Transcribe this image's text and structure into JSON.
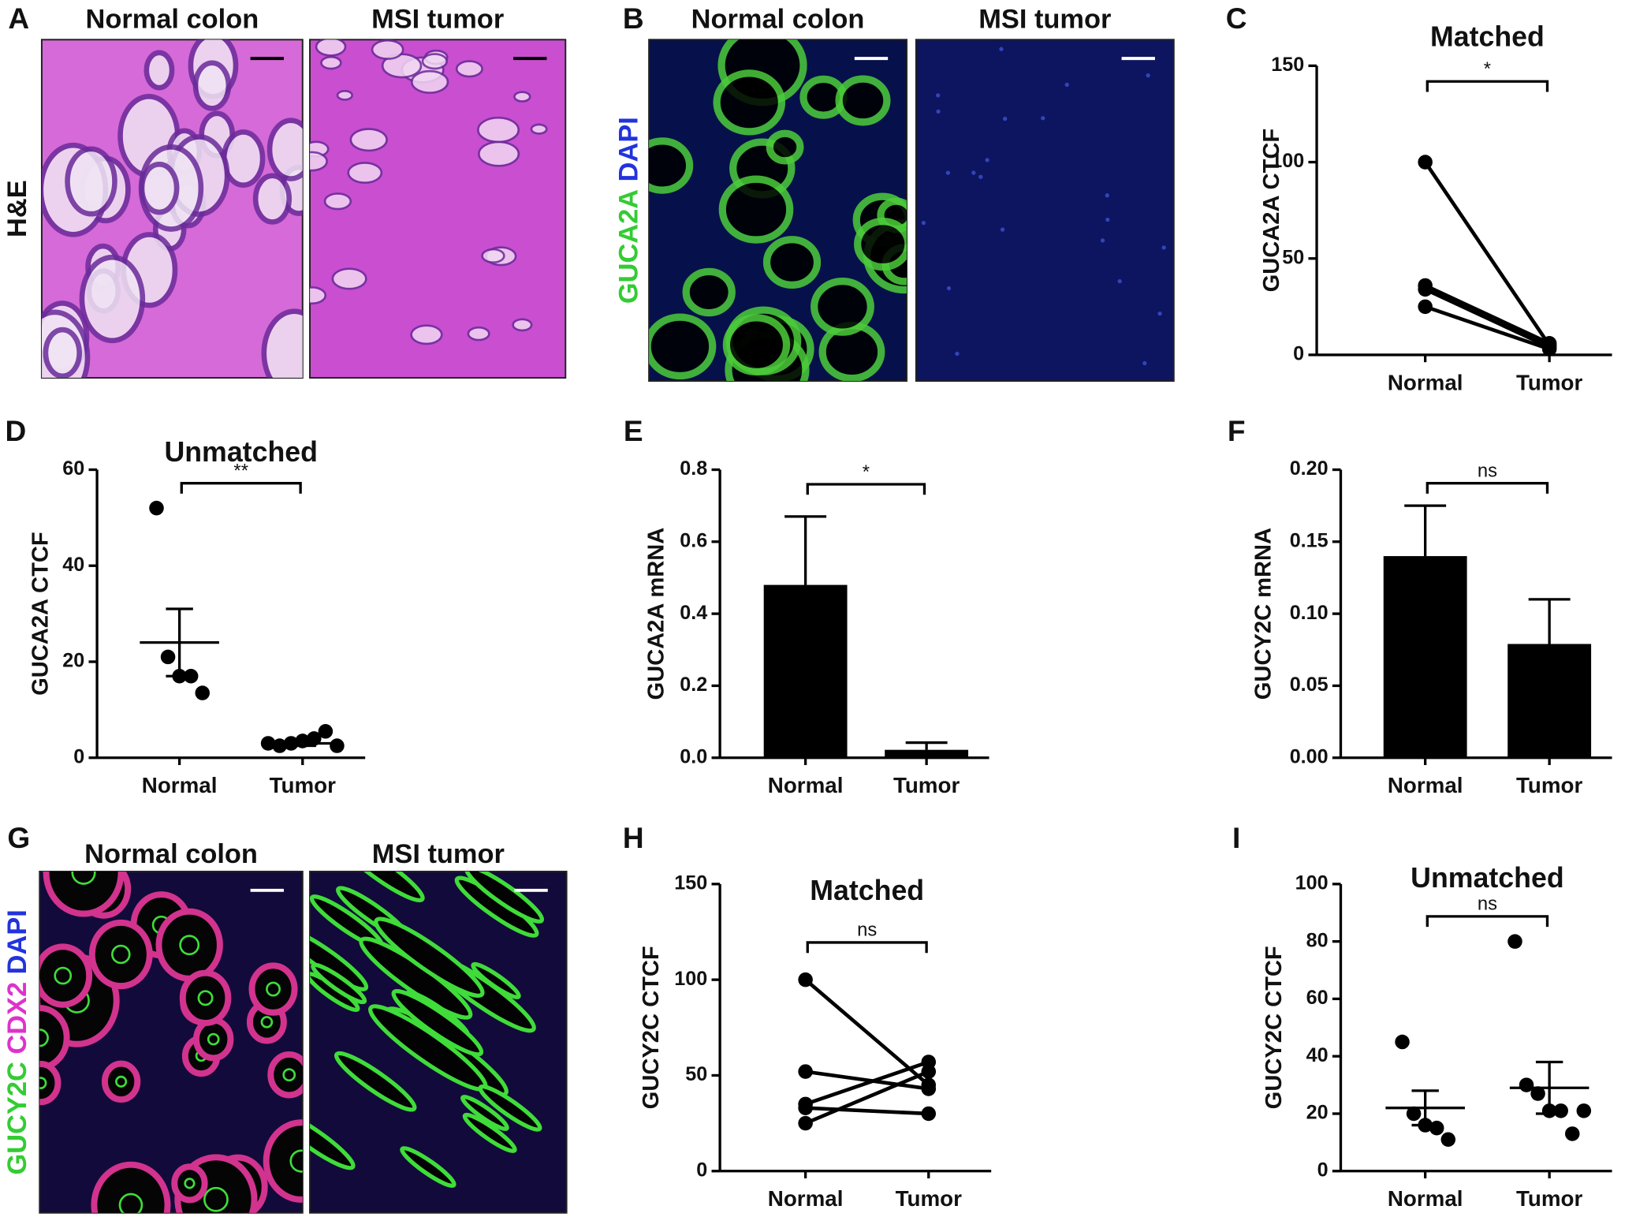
{
  "image_panels": [
    {
      "label": "A",
      "titles": [
        "Normal colon",
        "MSI tumor"
      ],
      "stains": [
        {
          "text": "H&E",
          "color": "#111111"
        }
      ]
    },
    {
      "label": "B",
      "titles": [
        "Normal colon",
        "MSI tumor"
      ],
      "stains": [
        {
          "text": "GUCA2A",
          "color": "#33cc33"
        },
        {
          "text": "DAPI",
          "color": "#2233dd"
        }
      ]
    },
    {
      "label": "G",
      "titles": [
        "Normal colon",
        "MSI tumor"
      ],
      "stains": [
        {
          "text": "GUCY2C",
          "color": "#33cc33"
        },
        {
          "text": "CDX2",
          "color": "#dd33cc"
        },
        {
          "text": "DAPI",
          "color": "#2233dd"
        }
      ]
    }
  ],
  "chart_data": [
    {
      "type": "line",
      "label": "C",
      "title": "Matched",
      "y_label": "GUCA2A CTCF",
      "categories": [
        "Normal",
        "Tumor"
      ],
      "series": [
        {
          "color": "#000000",
          "values": [
            100,
            5
          ]
        },
        {
          "color": "#000000",
          "values": [
            36,
            6
          ]
        },
        {
          "color": "#000000",
          "values": [
            34,
            4
          ]
        },
        {
          "color": "#000000",
          "values": [
            25,
            3
          ]
        }
      ],
      "ylim": [
        0,
        150
      ],
      "yticks": [
        0,
        50,
        100,
        150
      ],
      "significance": "*"
    },
    {
      "type": "dotplot",
      "label": "D",
      "title": "Unmatched",
      "y_label": "GUCA2A CTCF",
      "categories": [
        "Normal",
        "Tumor"
      ],
      "groups": [
        {
          "values": [
            52,
            21,
            17,
            17,
            13.5
          ],
          "mean": 24,
          "sem": 7
        },
        {
          "values": [
            3,
            2.5,
            3,
            3.5,
            4,
            5.5,
            2.5
          ],
          "mean": 3,
          "sem": 0.5
        }
      ],
      "color": "#000000",
      "ylim": [
        0,
        60
      ],
      "yticks": [
        0,
        20,
        40,
        60
      ],
      "significance": "**"
    },
    {
      "type": "bar",
      "label": "E",
      "y_label": "GUCA2A mRNA",
      "categories": [
        "Normal",
        "Tumor"
      ],
      "values": [
        0.48,
        0.022
      ],
      "errors": [
        0.19,
        0.02
      ],
      "color": "#000000",
      "ylim": [
        0,
        0.8
      ],
      "yticks": [
        {
          "value": 0,
          "label": "0.0"
        },
        0.2,
        0.4,
        0.6,
        0.8
      ],
      "significance": "*"
    },
    {
      "type": "bar",
      "label": "F",
      "y_label": "GUCY2C mRNA",
      "categories": [
        "Normal",
        "Tumor"
      ],
      "values": [
        0.14,
        0.079
      ],
      "errors": [
        0.035,
        0.031
      ],
      "color": "#000000",
      "ylim": [
        0,
        0.2
      ],
      "yticks": [
        {
          "value": 0,
          "label": "0.00"
        },
        {
          "value": 0.05,
          "label": "0.05"
        },
        {
          "value": 0.1,
          "label": "0.10"
        },
        {
          "value": 0.15,
          "label": "0.15"
        },
        {
          "value": 0.2,
          "label": "0.20"
        }
      ],
      "significance": "ns"
    },
    {
      "type": "line",
      "label": "H",
      "title": "Matched",
      "y_label": "GUCY2C CTCF",
      "categories": [
        "Normal",
        "Tumor"
      ],
      "series": [
        {
          "color": "#000000",
          "values": [
            100,
            45
          ]
        },
        {
          "color": "#000000",
          "values": [
            52,
            43
          ]
        },
        {
          "color": "#000000",
          "values": [
            35,
            57
          ]
        },
        {
          "color": "#000000",
          "values": [
            25,
            52
          ]
        },
        {
          "color": "#000000",
          "values": [
            33,
            30
          ]
        }
      ],
      "ylim": [
        0,
        150
      ],
      "yticks": [
        0,
        50,
        100,
        150
      ],
      "significance": "ns"
    },
    {
      "type": "dotplot",
      "label": "I",
      "title": "Unmatched",
      "y_label": "GUCY2C CTCF",
      "categories": [
        "Normal",
        "Tumor"
      ],
      "groups": [
        {
          "values": [
            45,
            20,
            16,
            15,
            11
          ],
          "mean": 22,
          "sem": 6
        },
        {
          "values": [
            80,
            30,
            27,
            21,
            21,
            13,
            21
          ],
          "mean": 29,
          "sem": 9
        }
      ],
      "color": "#000000",
      "ylim": [
        0,
        100
      ],
      "yticks": [
        0,
        20,
        40,
        60,
        80,
        100
      ],
      "significance": "ns"
    }
  ]
}
